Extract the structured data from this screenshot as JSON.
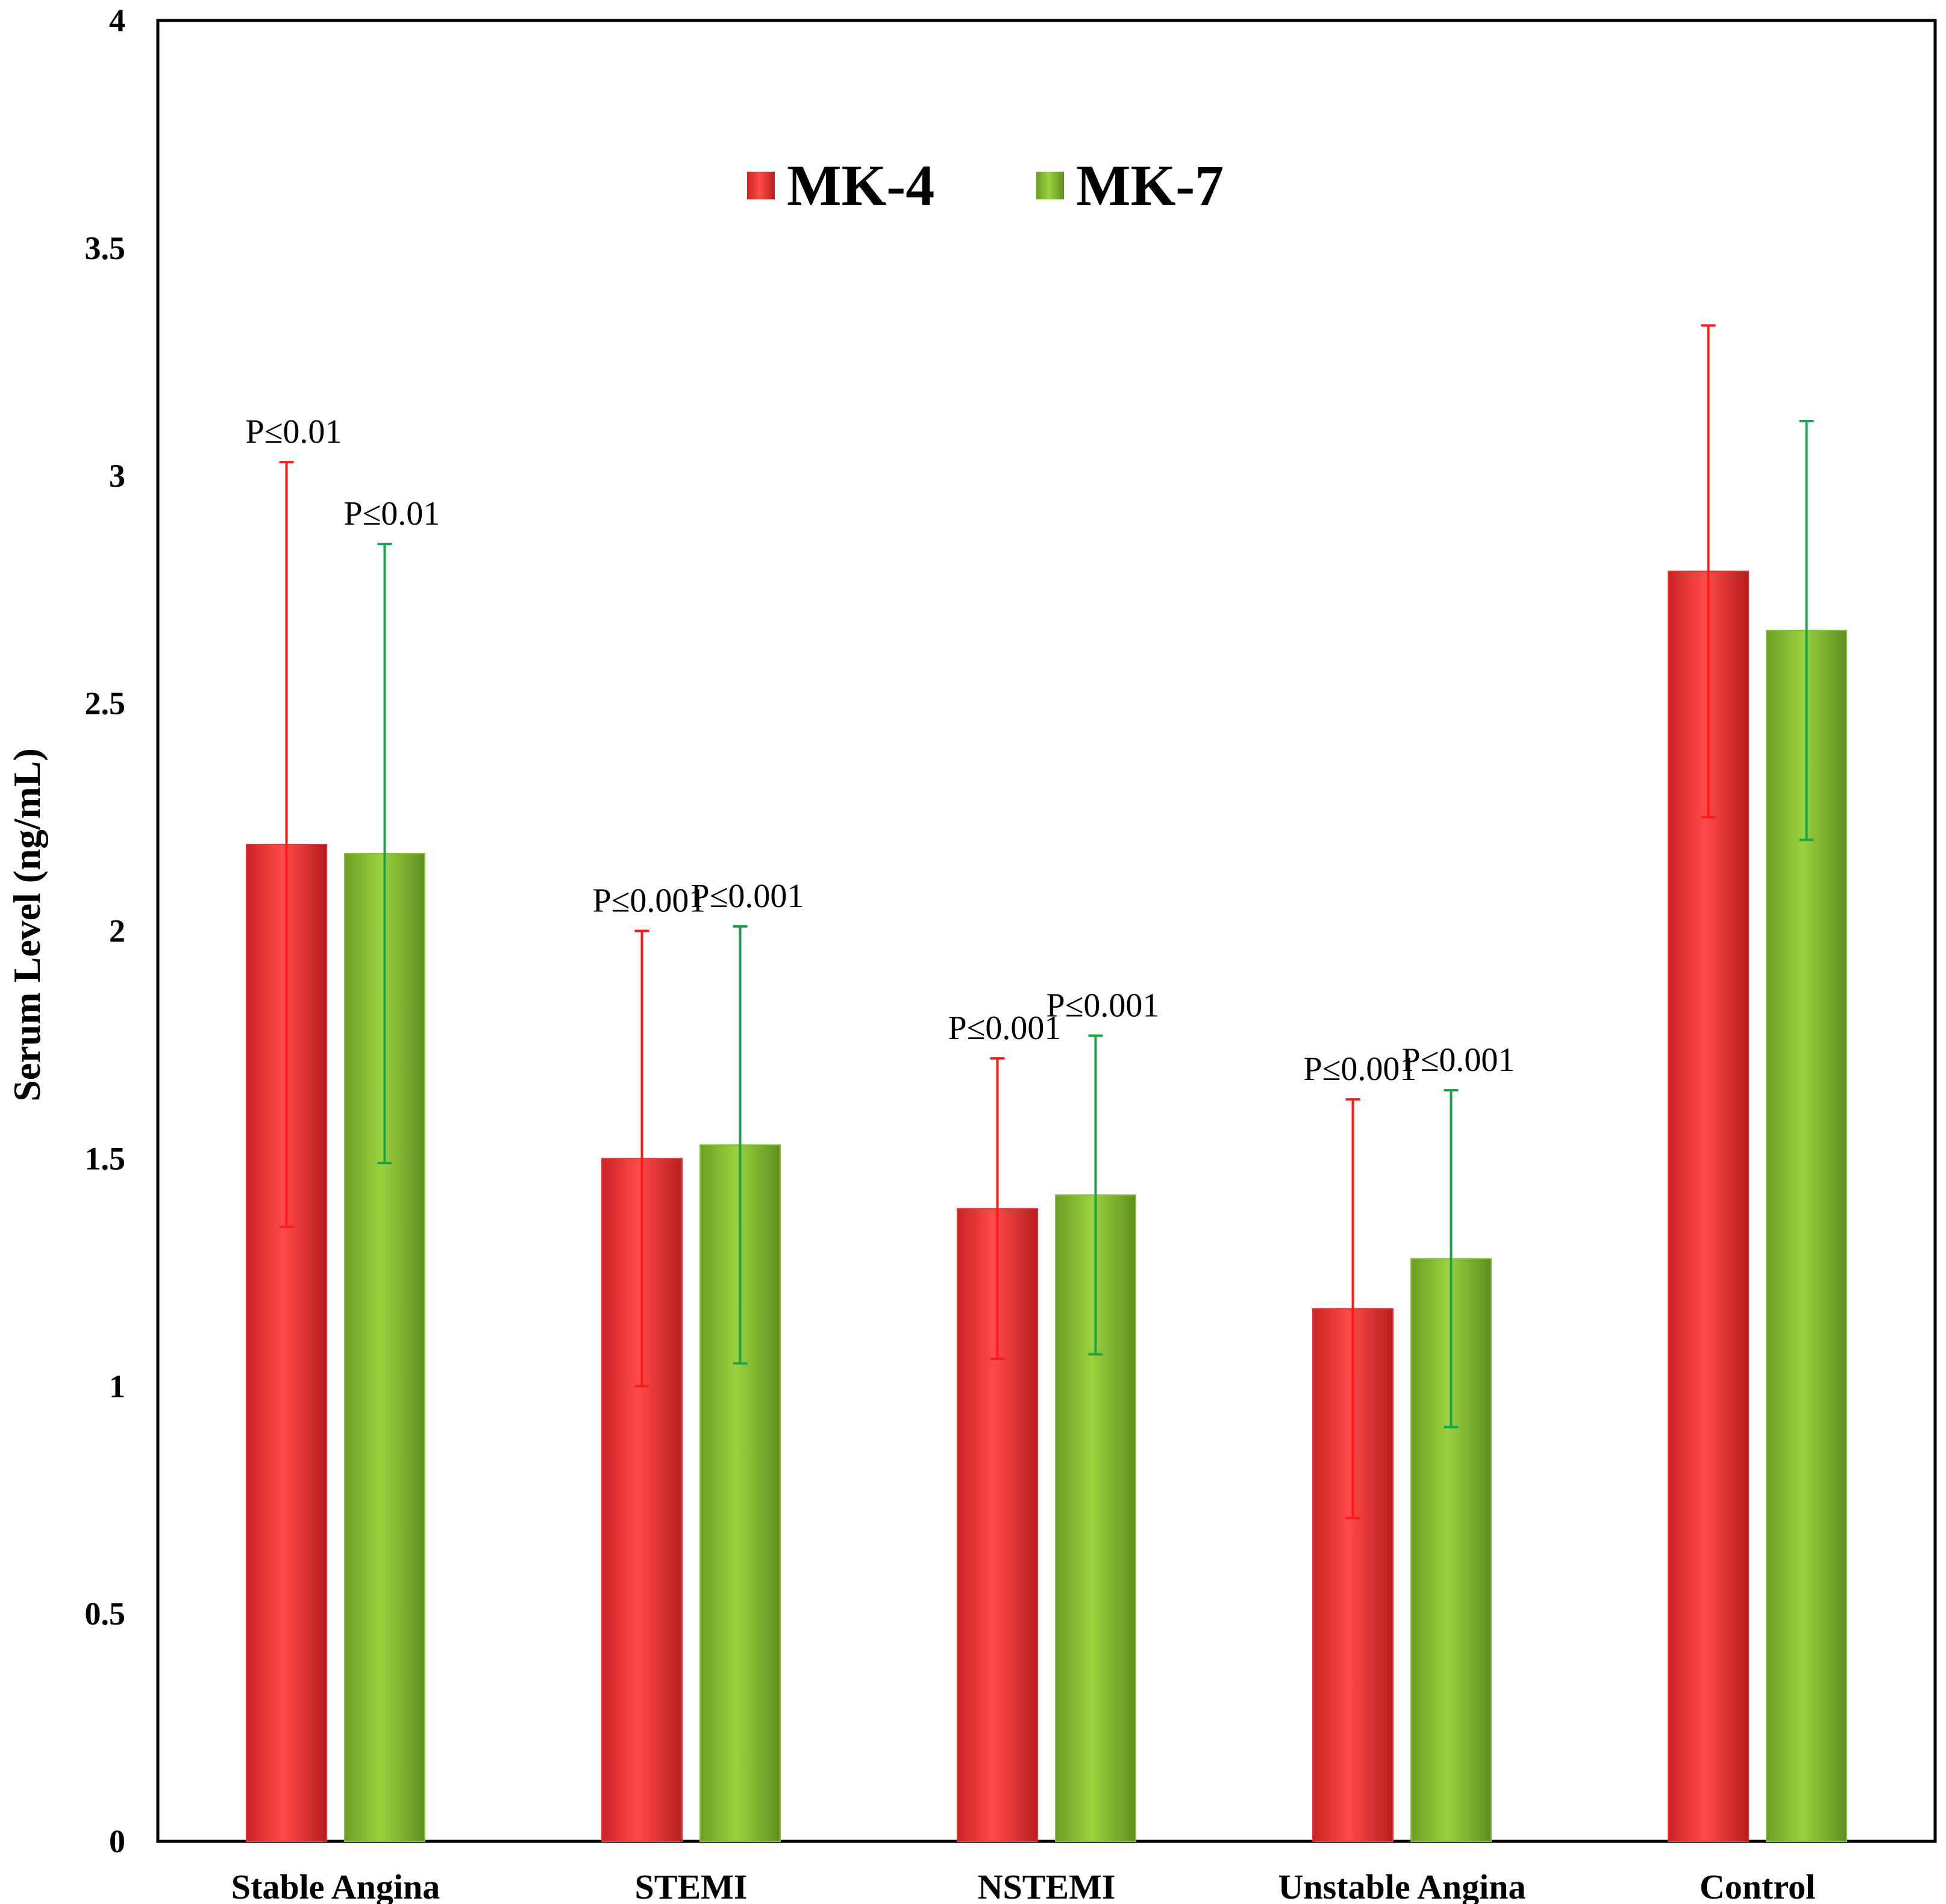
{
  "chart_data": {
    "type": "bar",
    "title": "",
    "xlabel": "",
    "ylabel": "Serum Level (ng/mL)",
    "ylim": [
      0,
      4
    ],
    "yticks": [
      "0",
      "0.5",
      "1",
      "1.5",
      "2",
      "2.5",
      "3",
      "3.5",
      "4"
    ],
    "ytick_values": [
      0,
      0.5,
      1,
      1.5,
      2,
      2.5,
      3,
      3.5,
      4
    ],
    "grid": false,
    "legend_position": "top-center",
    "categories": [
      "Stable Angina",
      "STEMI",
      "NSTEMI",
      "Unstable Angina",
      "Control"
    ],
    "series": [
      {
        "name": "MK-4",
        "color": "#e53535",
        "error_color": "#ff1a1a",
        "values": [
          2.19,
          1.5,
          1.39,
          1.17,
          2.79
        ],
        "errors": [
          0.84,
          0.5,
          0.33,
          0.46,
          0.54
        ],
        "p_labels": [
          "P≤0.01",
          "P≤0.001",
          "P≤0.001",
          "P≤0.001",
          ""
        ]
      },
      {
        "name": "MK-7",
        "color": "#86c232",
        "error_color": "#1aa34a",
        "values": [
          2.17,
          1.53,
          1.42,
          1.28,
          2.66
        ],
        "errors": [
          0.68,
          0.48,
          0.35,
          0.37,
          0.46
        ],
        "p_labels": [
          "P≤0.01",
          "P≤0.001",
          "P≤0.001",
          "P≤0.001",
          ""
        ]
      }
    ]
  }
}
